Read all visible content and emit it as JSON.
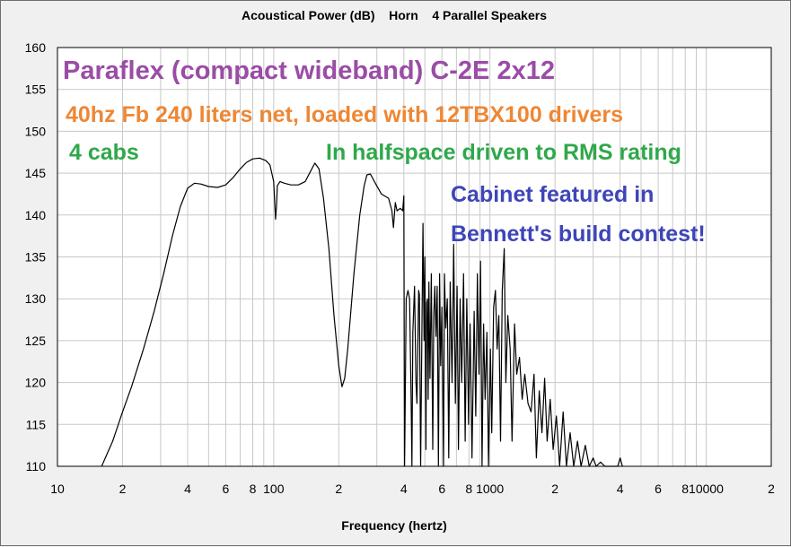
{
  "chart_data": {
    "type": "line",
    "title": "Acoustical Power (dB)    Horn    4 Parallel Speakers",
    "xlabel": "Frequency (hertz)",
    "ylabel": "",
    "x_scale": "log",
    "xlim": [
      10,
      20000
    ],
    "ylim": [
      110,
      160
    ],
    "grid": true,
    "y_ticks": [
      110,
      115,
      120,
      125,
      130,
      135,
      140,
      145,
      150,
      155,
      160
    ],
    "x_ticks": [
      {
        "value": 10,
        "label": "10"
      },
      {
        "value": 20,
        "label": "2"
      },
      {
        "value": 40,
        "label": "4"
      },
      {
        "value": 60,
        "label": "6"
      },
      {
        "value": 80,
        "label": "8"
      },
      {
        "value": 100,
        "label": "100"
      },
      {
        "value": 200,
        "label": "2"
      },
      {
        "value": 400,
        "label": "4"
      },
      {
        "value": 600,
        "label": "6"
      },
      {
        "value": 800,
        "label": "8"
      },
      {
        "value": 1000,
        "label": "1000"
      },
      {
        "value": 2000,
        "label": "2"
      },
      {
        "value": 4000,
        "label": "4"
      },
      {
        "value": 6000,
        "label": "6"
      },
      {
        "value": 8000,
        "label": "8"
      },
      {
        "value": 10000,
        "label": "10000"
      },
      {
        "value": 20000,
        "label": "2"
      }
    ],
    "series": [
      {
        "points": [
          [
            16,
            110
          ],
          [
            18,
            113
          ],
          [
            20,
            116.5
          ],
          [
            22,
            119.5
          ],
          [
            25,
            124
          ],
          [
            28,
            128.5
          ],
          [
            31,
            133
          ],
          [
            34,
            137.5
          ],
          [
            37,
            141
          ],
          [
            40,
            143.2
          ],
          [
            43,
            143.8
          ],
          [
            46,
            143.7
          ],
          [
            50,
            143.4
          ],
          [
            55,
            143.3
          ],
          [
            60,
            143.6
          ],
          [
            65,
            144.5
          ],
          [
            70,
            145.5
          ],
          [
            75,
            146.3
          ],
          [
            80,
            146.7
          ],
          [
            86,
            146.8
          ],
          [
            92,
            146.5
          ],
          [
            96,
            146
          ],
          [
            100,
            144
          ],
          [
            102,
            139.5
          ],
          [
            103,
            141
          ],
          [
            104,
            143.5
          ],
          [
            107,
            144
          ],
          [
            112,
            143.8
          ],
          [
            120,
            143.6
          ],
          [
            130,
            143.6
          ],
          [
            140,
            144
          ],
          [
            148,
            145.2
          ],
          [
            155,
            146.2
          ],
          [
            162,
            145.5
          ],
          [
            170,
            142
          ],
          [
            180,
            136
          ],
          [
            190,
            128
          ],
          [
            200,
            122
          ],
          [
            207,
            119.5
          ],
          [
            213,
            120.5
          ],
          [
            220,
            124
          ],
          [
            235,
            133
          ],
          [
            250,
            140
          ],
          [
            262,
            143.5
          ],
          [
            270,
            144.8
          ],
          [
            280,
            144.9
          ],
          [
            295,
            143.8
          ],
          [
            315,
            142.5
          ],
          [
            340,
            142
          ],
          [
            352,
            140.5
          ],
          [
            358,
            138.5
          ],
          [
            365,
            141.5
          ],
          [
            372,
            140.5
          ],
          [
            385,
            140.8
          ],
          [
            395,
            140.5
          ],
          [
            400,
            142.3
          ],
          [
            403,
            110
          ],
          [
            405,
            115
          ],
          [
            410,
            130
          ],
          [
            418,
            131
          ],
          [
            425,
            130
          ],
          [
            432,
            118
          ],
          [
            436,
            110
          ],
          [
            440,
            126
          ],
          [
            448,
            131.5
          ],
          [
            455,
            120
          ],
          [
            460,
            117.5
          ],
          [
            468,
            131
          ],
          [
            472,
            130.5
          ],
          [
            478,
            110
          ],
          [
            485,
            127
          ],
          [
            490,
            139
          ],
          [
            496,
            125
          ],
          [
            500,
            135
          ],
          [
            506,
            112
          ],
          [
            510,
            129.5
          ],
          [
            514,
            130
          ],
          [
            518,
            118
          ],
          [
            522,
            132
          ],
          [
            528,
            120.5
          ],
          [
            536,
            133
          ],
          [
            544,
            112
          ],
          [
            550,
            128
          ],
          [
            556,
            131.5
          ],
          [
            563,
            125.5
          ],
          [
            570,
            131.5
          ],
          [
            578,
            110
          ],
          [
            585,
            133
          ],
          [
            592,
            122
          ],
          [
            600,
            129
          ],
          [
            610,
            110
          ],
          [
            616,
            133
          ],
          [
            625,
            126.5
          ],
          [
            635,
            130
          ],
          [
            645,
            111
          ],
          [
            655,
            132
          ],
          [
            668,
            120
          ],
          [
            680,
            136.5
          ],
          [
            692,
            117.5
          ],
          [
            705,
            131.5
          ],
          [
            715,
            112
          ],
          [
            728,
            130
          ],
          [
            740,
            120
          ],
          [
            755,
            133
          ],
          [
            768,
            113
          ],
          [
            782,
            130
          ],
          [
            797,
            115
          ],
          [
            810,
            127
          ],
          [
            826,
            111
          ],
          [
            845,
            128.5
          ],
          [
            860,
            116
          ],
          [
            875,
            133
          ],
          [
            890,
            121
          ],
          [
            905,
            134.5
          ],
          [
            920,
            110
          ],
          [
            935,
            127
          ],
          [
            950,
            118
          ],
          [
            968,
            126
          ],
          [
            985,
            110
          ],
          [
            1005,
            124
          ],
          [
            1020,
            114
          ],
          [
            1040,
            129
          ],
          [
            1060,
            131
          ],
          [
            1080,
            124
          ],
          [
            1100,
            128
          ],
          [
            1120,
            113
          ],
          [
            1140,
            131
          ],
          [
            1165,
            136
          ],
          [
            1185,
            120
          ],
          [
            1210,
            128
          ],
          [
            1240,
            124
          ],
          [
            1265,
            113
          ],
          [
            1300,
            127
          ],
          [
            1330,
            121
          ],
          [
            1370,
            123
          ],
          [
            1410,
            118
          ],
          [
            1450,
            121
          ],
          [
            1500,
            117.5
          ],
          [
            1550,
            116.5
          ],
          [
            1600,
            121
          ],
          [
            1640,
            111
          ],
          [
            1690,
            119
          ],
          [
            1740,
            114
          ],
          [
            1790,
            120.5
          ],
          [
            1840,
            113
          ],
          [
            1900,
            118
          ],
          [
            1960,
            112
          ],
          [
            2030,
            116
          ],
          [
            2100,
            110
          ],
          [
            2180,
            116.5
          ],
          [
            2260,
            110
          ],
          [
            2350,
            114
          ],
          [
            2440,
            110
          ],
          [
            2540,
            113
          ],
          [
            2640,
            110
          ],
          [
            2760,
            112.5
          ],
          [
            2880,
            110
          ],
          [
            3000,
            111
          ],
          [
            3100,
            110
          ],
          [
            3250,
            110.5
          ],
          [
            3400,
            110
          ],
          [
            3600,
            110
          ],
          [
            3900,
            110
          ],
          [
            4000,
            111
          ],
          [
            4100,
            110
          ]
        ]
      }
    ]
  },
  "annotations": [
    {
      "text": "Paraflex (compact wideband) C-2E 2x12",
      "color": "#9b4ca6"
    },
    {
      "text": "40hz Fb 240 liters net, loaded with 12TBX100 drivers",
      "color": "#ee8734"
    },
    {
      "text": "4 cabs",
      "color": "#2fa84a"
    },
    {
      "text": "In halfspace driven to RMS rating",
      "color": "#2fa84a"
    },
    {
      "text": "Cabinet featured in",
      "color": "#3e45b8"
    },
    {
      "text": "Bennett's build contest!",
      "color": "#3e45b8"
    }
  ],
  "colors": {
    "background": "#f0f0f0",
    "plot_background": "#ffffff",
    "grid": "#c8c8c8",
    "curve": "#000000"
  }
}
